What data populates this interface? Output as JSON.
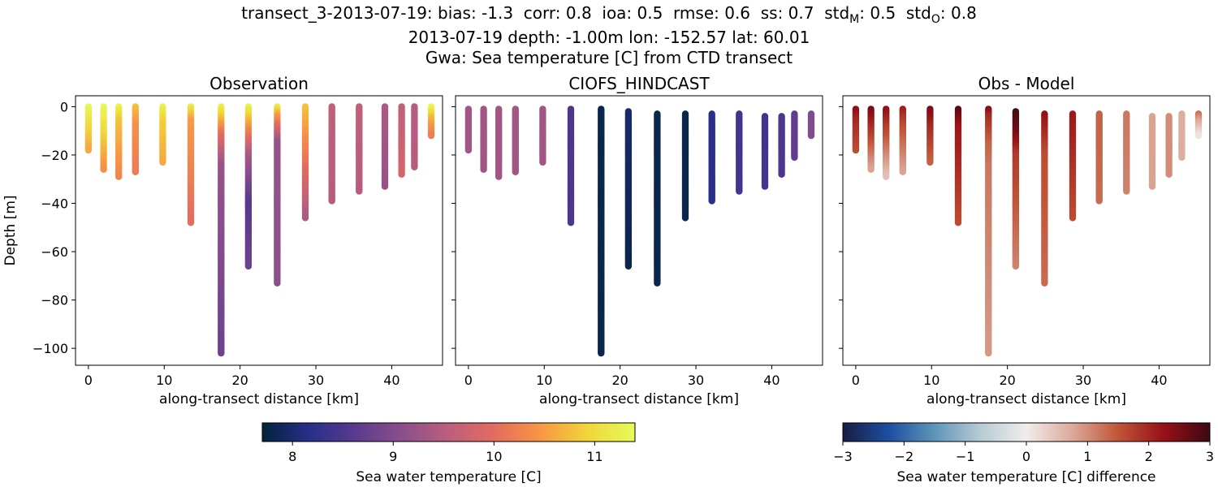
{
  "figure": {
    "title_lines": [
      "transect_3-2013-07-19: bias: -1.3  corr: 0.8  ioa: 0.5  rmse: 0.6  ss: 0.7  std",
      "2013-07-19 depth: -1.00m lon: -152.57 lat: 60.01",
      "Gwa: Sea temperature [C] from CTD transect"
    ],
    "title_std_M_sub": "M",
    "title_std_O": "std",
    "title_std_O_sub": "O",
    "title_tail_M": ": 0.5  ",
    "title_tail_O": ": 0.8"
  },
  "chart_data": [
    {
      "type": "scatter",
      "title": "Observation",
      "xlabel": "along-transect distance [km]",
      "ylabel": "Depth [m]",
      "xlim": [
        -1.7,
        46.7
      ],
      "ylim": [
        -107,
        4.5
      ],
      "xticks": [
        0,
        10,
        20,
        30,
        40
      ],
      "yticks": [
        0,
        -20,
        -40,
        -60,
        -80,
        -100
      ],
      "colormap": "thermal",
      "casts": [
        {
          "x": 0.0,
          "bottom": -18,
          "stops": [
            [
              0,
              11.4
            ],
            [
              -8,
              11.0
            ],
            [
              -18,
              10.6
            ]
          ]
        },
        {
          "x": 2.0,
          "bottom": -26,
          "stops": [
            [
              0,
              11.4
            ],
            [
              -10,
              11.0
            ],
            [
              -26,
              10.4
            ]
          ]
        },
        {
          "x": 4.0,
          "bottom": -29,
          "stops": [
            [
              0,
              11.3
            ],
            [
              -6,
              10.8
            ],
            [
              -29,
              10.3
            ]
          ]
        },
        {
          "x": 6.2,
          "bottom": -27,
          "stops": [
            [
              0,
              10.8
            ],
            [
              -8,
              10.4
            ],
            [
              -27,
              10.2
            ]
          ]
        },
        {
          "x": 9.8,
          "bottom": -23,
          "stops": [
            [
              0,
              11.3
            ],
            [
              -6,
              10.9
            ],
            [
              -23,
              10.6
            ]
          ]
        },
        {
          "x": 13.5,
          "bottom": -48,
          "stops": [
            [
              0,
              11.2
            ],
            [
              -6,
              10.5
            ],
            [
              -48,
              10.0
            ]
          ]
        },
        {
          "x": 17.5,
          "bottom": -102,
          "stops": [
            [
              0,
              11.3
            ],
            [
              -12,
              10.0
            ],
            [
              -25,
              9.2
            ],
            [
              -102,
              8.8
            ]
          ]
        },
        {
          "x": 21.1,
          "bottom": -66,
          "stops": [
            [
              0,
              11.3
            ],
            [
              -10,
              10.3
            ],
            [
              -20,
              9.4
            ],
            [
              -40,
              8.6
            ],
            [
              -66,
              8.8
            ]
          ]
        },
        {
          "x": 24.9,
          "bottom": -73,
          "stops": [
            [
              0,
              11.2
            ],
            [
              -4,
              10.5
            ],
            [
              -15,
              9.2
            ],
            [
              -73,
              9.1
            ]
          ]
        },
        {
          "x": 28.6,
          "bottom": -46,
          "stops": [
            [
              0,
              10.8
            ],
            [
              -46,
              9.4
            ]
          ]
        },
        {
          "x": 32.1,
          "bottom": -39,
          "stops": [
            [
              0,
              9.6
            ],
            [
              -39,
              9.5
            ]
          ]
        },
        {
          "x": 35.7,
          "bottom": -35,
          "stops": [
            [
              0,
              9.6
            ],
            [
              -35,
              9.5
            ]
          ]
        },
        {
          "x": 39.1,
          "bottom": -33,
          "stops": [
            [
              0,
              9.4
            ],
            [
              -33,
              9.2
            ]
          ]
        },
        {
          "x": 41.3,
          "bottom": -28,
          "stops": [
            [
              0,
              9.6
            ],
            [
              -28,
              9.8
            ]
          ]
        },
        {
          "x": 43.0,
          "bottom": -25,
          "stops": [
            [
              0,
              9.5
            ],
            [
              -25,
              9.5
            ]
          ]
        },
        {
          "x": 45.2,
          "bottom": -12,
          "stops": [
            [
              0,
              11.4
            ],
            [
              -5,
              10.7
            ],
            [
              -12,
              10.2
            ]
          ]
        }
      ]
    },
    {
      "type": "scatter",
      "title": "CIOFS_HINDCAST",
      "xlabel": "along-transect distance [km]",
      "xlim": [
        -1.7,
        46.7
      ],
      "ylim": [
        -107,
        4.5
      ],
      "xticks": [
        0,
        10,
        20,
        30,
        40
      ],
      "colormap": "thermal",
      "casts": [
        {
          "x": 0.0,
          "top": -1,
          "bottom": -18,
          "stops": [
            [
              0,
              9.3
            ],
            [
              -18,
              9.3
            ]
          ]
        },
        {
          "x": 2.0,
          "top": -1,
          "bottom": -26,
          "stops": [
            [
              0,
              9.3
            ],
            [
              -26,
              9.3
            ]
          ]
        },
        {
          "x": 4.0,
          "top": -1,
          "bottom": -29,
          "stops": [
            [
              0,
              9.3
            ],
            [
              -29,
              9.3
            ]
          ]
        },
        {
          "x": 6.2,
          "top": -1,
          "bottom": -27,
          "stops": [
            [
              0,
              9.3
            ],
            [
              -27,
              9.3
            ]
          ]
        },
        {
          "x": 9.8,
          "top": -1,
          "bottom": -23,
          "stops": [
            [
              0,
              9.3
            ],
            [
              -23,
              9.3
            ]
          ]
        },
        {
          "x": 13.5,
          "top": -1,
          "bottom": -48,
          "stops": [
            [
              0,
              8.5
            ],
            [
              -48,
              8.5
            ]
          ]
        },
        {
          "x": 17.5,
          "top": -1,
          "bottom": -102,
          "stops": [
            [
              0,
              7.8
            ],
            [
              -102,
              7.8
            ]
          ]
        },
        {
          "x": 21.1,
          "top": -2,
          "bottom": -66,
          "stops": [
            [
              0,
              8.0
            ],
            [
              -66,
              7.8
            ]
          ]
        },
        {
          "x": 24.9,
          "top": -3,
          "bottom": -73,
          "stops": [
            [
              0,
              7.8
            ],
            [
              -73,
              7.8
            ]
          ]
        },
        {
          "x": 28.6,
          "top": -3,
          "bottom": -46,
          "stops": [
            [
              0,
              7.8
            ],
            [
              -46,
              7.8
            ]
          ]
        },
        {
          "x": 32.1,
          "top": -3,
          "bottom": -39,
          "stops": [
            [
              0,
              8.2
            ],
            [
              -39,
              8.2
            ]
          ]
        },
        {
          "x": 35.7,
          "top": -3,
          "bottom": -35,
          "stops": [
            [
              0,
              8.4
            ],
            [
              -35,
              8.4
            ]
          ]
        },
        {
          "x": 39.1,
          "top": -4,
          "bottom": -33,
          "stops": [
            [
              0,
              8.4
            ],
            [
              -33,
              8.4
            ]
          ]
        },
        {
          "x": 41.3,
          "top": -4,
          "bottom": -28,
          "stops": [
            [
              0,
              8.5
            ],
            [
              -28,
              8.5
            ]
          ]
        },
        {
          "x": 43.0,
          "top": -3,
          "bottom": -21,
          "stops": [
            [
              0,
              8.7
            ],
            [
              -21,
              8.7
            ]
          ]
        },
        {
          "x": 45.2,
          "top": -3,
          "bottom": -12,
          "stops": [
            [
              0,
              9.0
            ],
            [
              -12,
              9.0
            ]
          ]
        }
      ]
    },
    {
      "type": "scatter",
      "title": "Obs - Model",
      "xlabel": "along-transect distance [km]",
      "xlim": [
        -1.7,
        46.7
      ],
      "ylim": [
        -107,
        4.5
      ],
      "xticks": [
        0,
        10,
        20,
        30,
        40
      ],
      "colormap": "balance",
      "casts": [
        {
          "x": 0.0,
          "top": -1,
          "bottom": -18,
          "stops": [
            [
              0,
              2.4
            ],
            [
              -6,
              2.0
            ],
            [
              -18,
              1.6
            ]
          ]
        },
        {
          "x": 2.0,
          "top": -1,
          "bottom": -26,
          "stops": [
            [
              0,
              2.6
            ],
            [
              -8,
              2.0
            ],
            [
              -26,
              0.8
            ]
          ]
        },
        {
          "x": 4.0,
          "top": -1,
          "bottom": -29,
          "stops": [
            [
              0,
              2.4
            ],
            [
              -8,
              1.8
            ],
            [
              -29,
              0.5
            ]
          ]
        },
        {
          "x": 6.2,
          "top": -1,
          "bottom": -27,
          "stops": [
            [
              0,
              2.2
            ],
            [
              -8,
              1.6
            ],
            [
              -27,
              0.8
            ]
          ]
        },
        {
          "x": 9.8,
          "top": -1,
          "bottom": -23,
          "stops": [
            [
              0,
              2.6
            ],
            [
              -8,
              2.0
            ],
            [
              -23,
              1.4
            ]
          ]
        },
        {
          "x": 13.5,
          "top": -1,
          "bottom": -48,
          "stops": [
            [
              0,
              2.9
            ],
            [
              -8,
              2.2
            ],
            [
              -48,
              1.6
            ]
          ]
        },
        {
          "x": 17.5,
          "top": -1,
          "bottom": -102,
          "stops": [
            [
              0,
              2.6
            ],
            [
              -4,
              2.0
            ],
            [
              -15,
              1.4
            ],
            [
              -25,
              1.2
            ],
            [
              -102,
              0.9
            ]
          ]
        },
        {
          "x": 21.1,
          "top": -2,
          "bottom": -66,
          "stops": [
            [
              0,
              3.0
            ],
            [
              -10,
              2.6
            ],
            [
              -20,
              1.8
            ],
            [
              -66,
              1.1
            ]
          ]
        },
        {
          "x": 24.9,
          "top": -3,
          "bottom": -73,
          "stops": [
            [
              0,
              2.4
            ],
            [
              -20,
              1.6
            ],
            [
              -73,
              1.3
            ]
          ]
        },
        {
          "x": 28.6,
          "top": -3,
          "bottom": -46,
          "stops": [
            [
              0,
              2.2
            ],
            [
              -46,
              1.6
            ]
          ]
        },
        {
          "x": 32.1,
          "top": -3,
          "bottom": -39,
          "stops": [
            [
              0,
              1.4
            ],
            [
              -39,
              1.3
            ]
          ]
        },
        {
          "x": 35.7,
          "top": -3,
          "bottom": -35,
          "stops": [
            [
              0,
              1.2
            ],
            [
              -35,
              1.1
            ]
          ]
        },
        {
          "x": 39.1,
          "top": -4,
          "bottom": -33,
          "stops": [
            [
              0,
              0.8
            ],
            [
              -33,
              0.8
            ]
          ]
        },
        {
          "x": 41.3,
          "top": -4,
          "bottom": -28,
          "stops": [
            [
              0,
              1.0
            ],
            [
              -28,
              1.0
            ]
          ]
        },
        {
          "x": 43.0,
          "top": -3,
          "bottom": -21,
          "stops": [
            [
              0,
              0.7
            ],
            [
              -21,
              0.7
            ]
          ]
        },
        {
          "x": 45.2,
          "top": -3,
          "bottom": -12,
          "stops": [
            [
              0,
              1.8
            ],
            [
              -6,
              0.8
            ],
            [
              -12,
              0.1
            ]
          ]
        }
      ]
    }
  ],
  "colorbars": [
    {
      "label": "Sea water temperature [C]",
      "colormap": "thermal",
      "range": [
        7.7,
        11.4
      ],
      "ticks": [
        8,
        9,
        10,
        11
      ],
      "tick_labels": [
        "8",
        "9",
        "10",
        "11"
      ]
    },
    {
      "label": "Sea water temperature [C] difference",
      "colormap": "balance",
      "range": [
        -3,
        3
      ],
      "ticks": [
        -3,
        -2,
        -1,
        0,
        1,
        2,
        3
      ],
      "tick_labels": [
        "−3",
        "−2",
        "−1",
        "0",
        "1",
        "2",
        "3"
      ]
    }
  ],
  "colormaps": {
    "thermal": [
      "#03233a",
      "#262f8a",
      "#5a3a8d",
      "#8a4f8c",
      "#bb5f7d",
      "#e46c5f",
      "#f79844",
      "#f0d73a",
      "#e7fa5a"
    ],
    "balance": [
      "#181c43",
      "#1d4fa0",
      "#5d95b8",
      "#b7cbd3",
      "#f1ecec",
      "#dca99a",
      "#c05537",
      "#961018",
      "#3c0912"
    ]
  }
}
